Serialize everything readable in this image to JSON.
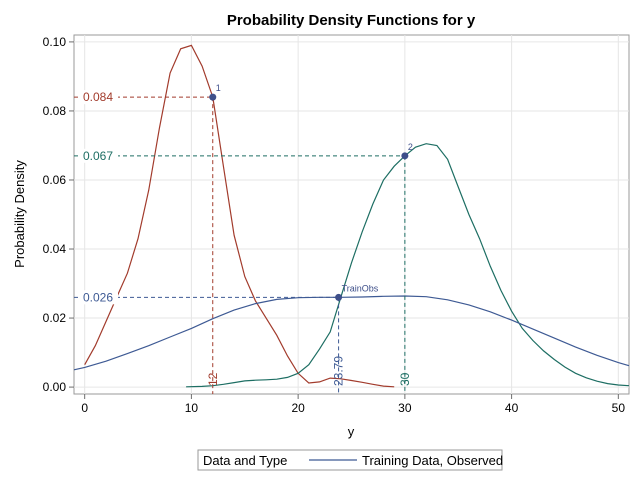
{
  "chart_data": {
    "type": "line",
    "title": "Probability Density Functions for y",
    "xlabel": "y",
    "ylabel": "Probability Density",
    "xlim": [
      -1,
      51
    ],
    "ylim": [
      -0.002,
      0.102
    ],
    "xticks": [
      0,
      10,
      20,
      30,
      40,
      50
    ],
    "xtick_labels": [
      "0",
      "10",
      "20",
      "30",
      "40",
      "50"
    ],
    "yticks": [
      0.0,
      0.02,
      0.04,
      0.06,
      0.08,
      0.1
    ],
    "ytick_labels": [
      "0.00",
      "0.02",
      "0.04",
      "0.06",
      "0.08",
      "0.10"
    ],
    "grid": true,
    "series": [
      {
        "color": "#a23b2c",
        "points": [
          [
            0,
            0.0065
          ],
          [
            1,
            0.012
          ],
          [
            2,
            0.019
          ],
          [
            3,
            0.026
          ],
          [
            4,
            0.033
          ],
          [
            5,
            0.043
          ],
          [
            6,
            0.057
          ],
          [
            7,
            0.075
          ],
          [
            8,
            0.091
          ],
          [
            9,
            0.098
          ],
          [
            10,
            0.099
          ],
          [
            11,
            0.093
          ],
          [
            12,
            0.084
          ],
          [
            13,
            0.064
          ],
          [
            14,
            0.044
          ],
          [
            15,
            0.032
          ],
          [
            16,
            0.025
          ],
          [
            17,
            0.02
          ],
          [
            18,
            0.015
          ],
          [
            19,
            0.009
          ],
          [
            20,
            0.004
          ],
          [
            21,
            0.0012
          ],
          [
            22,
            0.0015
          ],
          [
            23,
            0.0026
          ],
          [
            24,
            0.0024
          ],
          [
            25,
            0.0019
          ],
          [
            26,
            0.0014
          ],
          [
            27,
            0.0008
          ],
          [
            28,
            0.0003
          ],
          [
            29,
            0.0001
          ]
        ]
      },
      {
        "color": "#1d6e63",
        "points": [
          [
            9.5,
            0.0001
          ],
          [
            11,
            0.0002
          ],
          [
            12,
            0.0004
          ],
          [
            13,
            0.0008
          ],
          [
            14,
            0.0013
          ],
          [
            15,
            0.0018
          ],
          [
            16,
            0.002
          ],
          [
            17,
            0.0021
          ],
          [
            18,
            0.0023
          ],
          [
            19,
            0.0028
          ],
          [
            20,
            0.004
          ],
          [
            21,
            0.0065
          ],
          [
            22,
            0.011
          ],
          [
            23,
            0.016
          ],
          [
            24,
            0.026
          ],
          [
            25,
            0.036
          ],
          [
            26,
            0.045
          ],
          [
            27,
            0.053
          ],
          [
            28,
            0.06
          ],
          [
            29,
            0.064
          ],
          [
            30,
            0.067
          ],
          [
            31,
            0.0695
          ],
          [
            32,
            0.0705
          ],
          [
            33,
            0.07
          ],
          [
            34,
            0.066
          ],
          [
            35,
            0.058
          ],
          [
            36,
            0.05
          ],
          [
            37,
            0.043
          ],
          [
            38,
            0.035
          ],
          [
            39,
            0.028
          ],
          [
            40,
            0.022
          ],
          [
            41,
            0.017
          ],
          [
            42,
            0.0135
          ],
          [
            43,
            0.0105
          ],
          [
            44,
            0.008
          ],
          [
            45,
            0.0058
          ],
          [
            46,
            0.004
          ],
          [
            47,
            0.0027
          ],
          [
            48,
            0.0017
          ],
          [
            49,
            0.001
          ],
          [
            50,
            0.0006
          ],
          [
            51,
            0.0004
          ]
        ]
      },
      {
        "name": "Training Data, Observed",
        "color": "#3e5a94",
        "points": [
          [
            -1,
            0.005
          ],
          [
            0,
            0.0057
          ],
          [
            2,
            0.0075
          ],
          [
            4,
            0.0097
          ],
          [
            6,
            0.012
          ],
          [
            8,
            0.0145
          ],
          [
            10,
            0.017
          ],
          [
            12,
            0.0198
          ],
          [
            14,
            0.0223
          ],
          [
            16,
            0.0242
          ],
          [
            18,
            0.0254
          ],
          [
            20,
            0.0259
          ],
          [
            22,
            0.026
          ],
          [
            24,
            0.026
          ],
          [
            26,
            0.0261
          ],
          [
            28,
            0.0263
          ],
          [
            30,
            0.0264
          ],
          [
            32,
            0.0262
          ],
          [
            34,
            0.0253
          ],
          [
            36,
            0.0238
          ],
          [
            38,
            0.0218
          ],
          [
            40,
            0.0194
          ],
          [
            42,
            0.0168
          ],
          [
            44,
            0.0142
          ],
          [
            46,
            0.0116
          ],
          [
            48,
            0.0092
          ],
          [
            50,
            0.0071
          ],
          [
            51,
            0.0062
          ]
        ]
      }
    ],
    "annotations": [
      {
        "x": 12,
        "y": 0.084,
        "y_label": "0.084",
        "x_label": "12",
        "point_label": "1",
        "color": "#a23b2c"
      },
      {
        "x": 30,
        "y": 0.067,
        "y_label": "0.067",
        "x_label": "30",
        "point_label": "2",
        "color": "#1d6e63"
      },
      {
        "x": 23.79,
        "y": 0.026,
        "y_label": "0.026",
        "x_label": "23.79",
        "point_label": "TrainObs",
        "color": "#3e5a94"
      }
    ],
    "marker_color": "#3e4f8a",
    "legend": {
      "title": "Data and Type",
      "placement": "bottom",
      "entries": [
        {
          "label": "Training Data, Observed",
          "color": "#3e5a94"
        }
      ]
    }
  }
}
